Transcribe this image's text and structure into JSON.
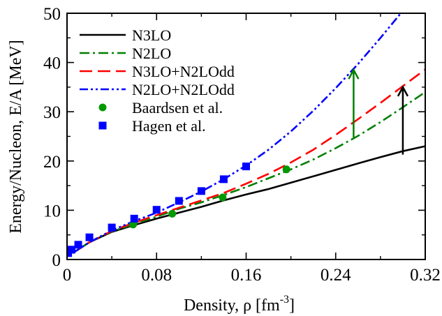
{
  "chart_data": {
    "type": "line",
    "xlabel": "Density, ρ [fm",
    "xlabel_sup": "-3",
    "xlabel_tail": "]",
    "ylabel": "Energy/Nucleon, E/A [MeV]",
    "xlim": [
      0,
      0.32
    ],
    "ylim": [
      0,
      50
    ],
    "xticks": [
      0,
      0.08,
      0.16,
      0.24,
      0.32
    ],
    "xtick_labels": [
      "0",
      "0.08",
      "0.16",
      "0.24",
      "0.32"
    ],
    "yticks": [
      0,
      10,
      20,
      30,
      40,
      50
    ],
    "ytick_labels": [
      "0",
      "10",
      "20",
      "30",
      "40",
      "50"
    ],
    "grid": false,
    "legend_position": "top-left",
    "series": [
      {
        "name": "N3LO",
        "kind": "line",
        "style": "solid",
        "color": "#000000",
        "x": [
          0.005,
          0.02,
          0.04,
          0.06,
          0.08,
          0.1,
          0.12,
          0.14,
          0.16,
          0.18,
          0.2,
          0.22,
          0.24,
          0.26,
          0.28,
          0.3,
          0.32
        ],
        "y": [
          1.3,
          3.5,
          5.6,
          7.0,
          8.3,
          9.5,
          10.7,
          12.0,
          13.2,
          14.3,
          15.6,
          16.9,
          18.2,
          19.5,
          20.8,
          22.0,
          23.0
        ]
      },
      {
        "name": "N2LO",
        "kind": "line",
        "style": "dashdot",
        "color": "#008000",
        "x": [
          0.005,
          0.02,
          0.04,
          0.06,
          0.08,
          0.1,
          0.12,
          0.14,
          0.16,
          0.18,
          0.2,
          0.22,
          0.24,
          0.26,
          0.28,
          0.3,
          0.32
        ],
        "y": [
          1.3,
          3.5,
          5.7,
          7.2,
          8.7,
          10.3,
          11.6,
          13.1,
          14.7,
          16.5,
          18.3,
          20.3,
          22.6,
          25.1,
          27.9,
          30.9,
          34.0
        ]
      },
      {
        "name": "N3LO+N2LOdd",
        "kind": "line",
        "style": "dashed",
        "color": "#ff0000",
        "x": [
          0.005,
          0.02,
          0.04,
          0.06,
          0.08,
          0.1,
          0.12,
          0.14,
          0.16,
          0.18,
          0.2,
          0.22,
          0.24,
          0.26,
          0.28,
          0.3,
          0.32
        ],
        "y": [
          1.3,
          3.5,
          5.8,
          7.5,
          9.0,
          10.5,
          12.0,
          13.5,
          15.4,
          17.4,
          19.7,
          22.3,
          25.3,
          28.5,
          31.8,
          35.2,
          38.6
        ]
      },
      {
        "name": "N2LO+N2LOdd",
        "kind": "line",
        "style": "dashdotdot",
        "color": "#0000ff",
        "x": [
          0.005,
          0.02,
          0.04,
          0.06,
          0.08,
          0.1,
          0.12,
          0.14,
          0.16,
          0.18,
          0.2,
          0.22,
          0.24,
          0.26,
          0.28,
          0.3,
          0.32
        ],
        "y": [
          1.3,
          3.5,
          5.9,
          7.8,
          9.5,
          11.6,
          13.8,
          16.3,
          19.1,
          22.3,
          26.0,
          30.2,
          34.8,
          39.7,
          45.0,
          50.5,
          56.5
        ]
      },
      {
        "name": "Baardsen et al.",
        "kind": "scatter",
        "marker": "circle",
        "color": "#009900",
        "x": [
          0.059,
          0.094,
          0.139,
          0.196
        ],
        "y": [
          7.1,
          9.3,
          12.6,
          18.3
        ]
      },
      {
        "name": "Hagen et al.",
        "kind": "scatter",
        "marker": "square",
        "color": "#0000ff",
        "x": [
          0.001,
          0.004,
          0.01,
          0.02,
          0.04,
          0.06,
          0.08,
          0.1,
          0.12,
          0.14,
          0.16
        ],
        "y": [
          1.3,
          2.0,
          3.0,
          4.5,
          6.5,
          8.3,
          10.1,
          11.9,
          13.9,
          16.3,
          18.9
        ]
      }
    ],
    "annotations": [
      {
        "kind": "arrow",
        "color": "#008000",
        "x": 0.256,
        "y_from": 24.8,
        "y_to": 38.5
      },
      {
        "kind": "arrow",
        "color": "#000000",
        "x": 0.3,
        "y_from": 21.3,
        "y_to": 35.0
      }
    ]
  }
}
